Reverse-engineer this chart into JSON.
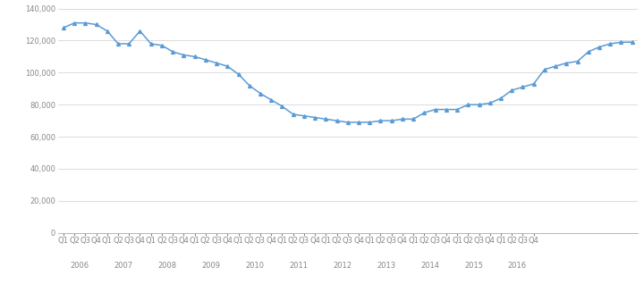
{
  "values": [
    128000,
    131000,
    131000,
    130000,
    126000,
    118000,
    118000,
    126000,
    118000,
    117000,
    113000,
    111000,
    110000,
    108000,
    106000,
    104000,
    99000,
    92000,
    87000,
    83000,
    79000,
    74000,
    73000,
    72000,
    71000,
    70000,
    69000,
    69000,
    69000,
    70000,
    70000,
    71000,
    71000,
    75000,
    77000,
    77000,
    77000,
    80000,
    80000,
    81000,
    84000,
    89000,
    91000,
    93000,
    102000,
    104000,
    106000,
    107000,
    113000,
    116000,
    118000,
    119000,
    119000
  ],
  "years": [
    2006,
    2007,
    2008,
    2009,
    2010,
    2011,
    2012,
    2013,
    2014,
    2015,
    2016
  ],
  "quarters": [
    "Q1",
    "Q2",
    "Q3",
    "Q4"
  ],
  "line_color": "#5B9BD5",
  "marker_style": "^",
  "marker_size": 2.8,
  "line_width": 1.1,
  "ylim": [
    0,
    140000
  ],
  "ytick_step": 20000,
  "background_color": "#ffffff",
  "grid_color": "#cccccc",
  "tick_label_color": "#888888",
  "tick_fontsize": 6.0,
  "year_fontsize": 6.0
}
